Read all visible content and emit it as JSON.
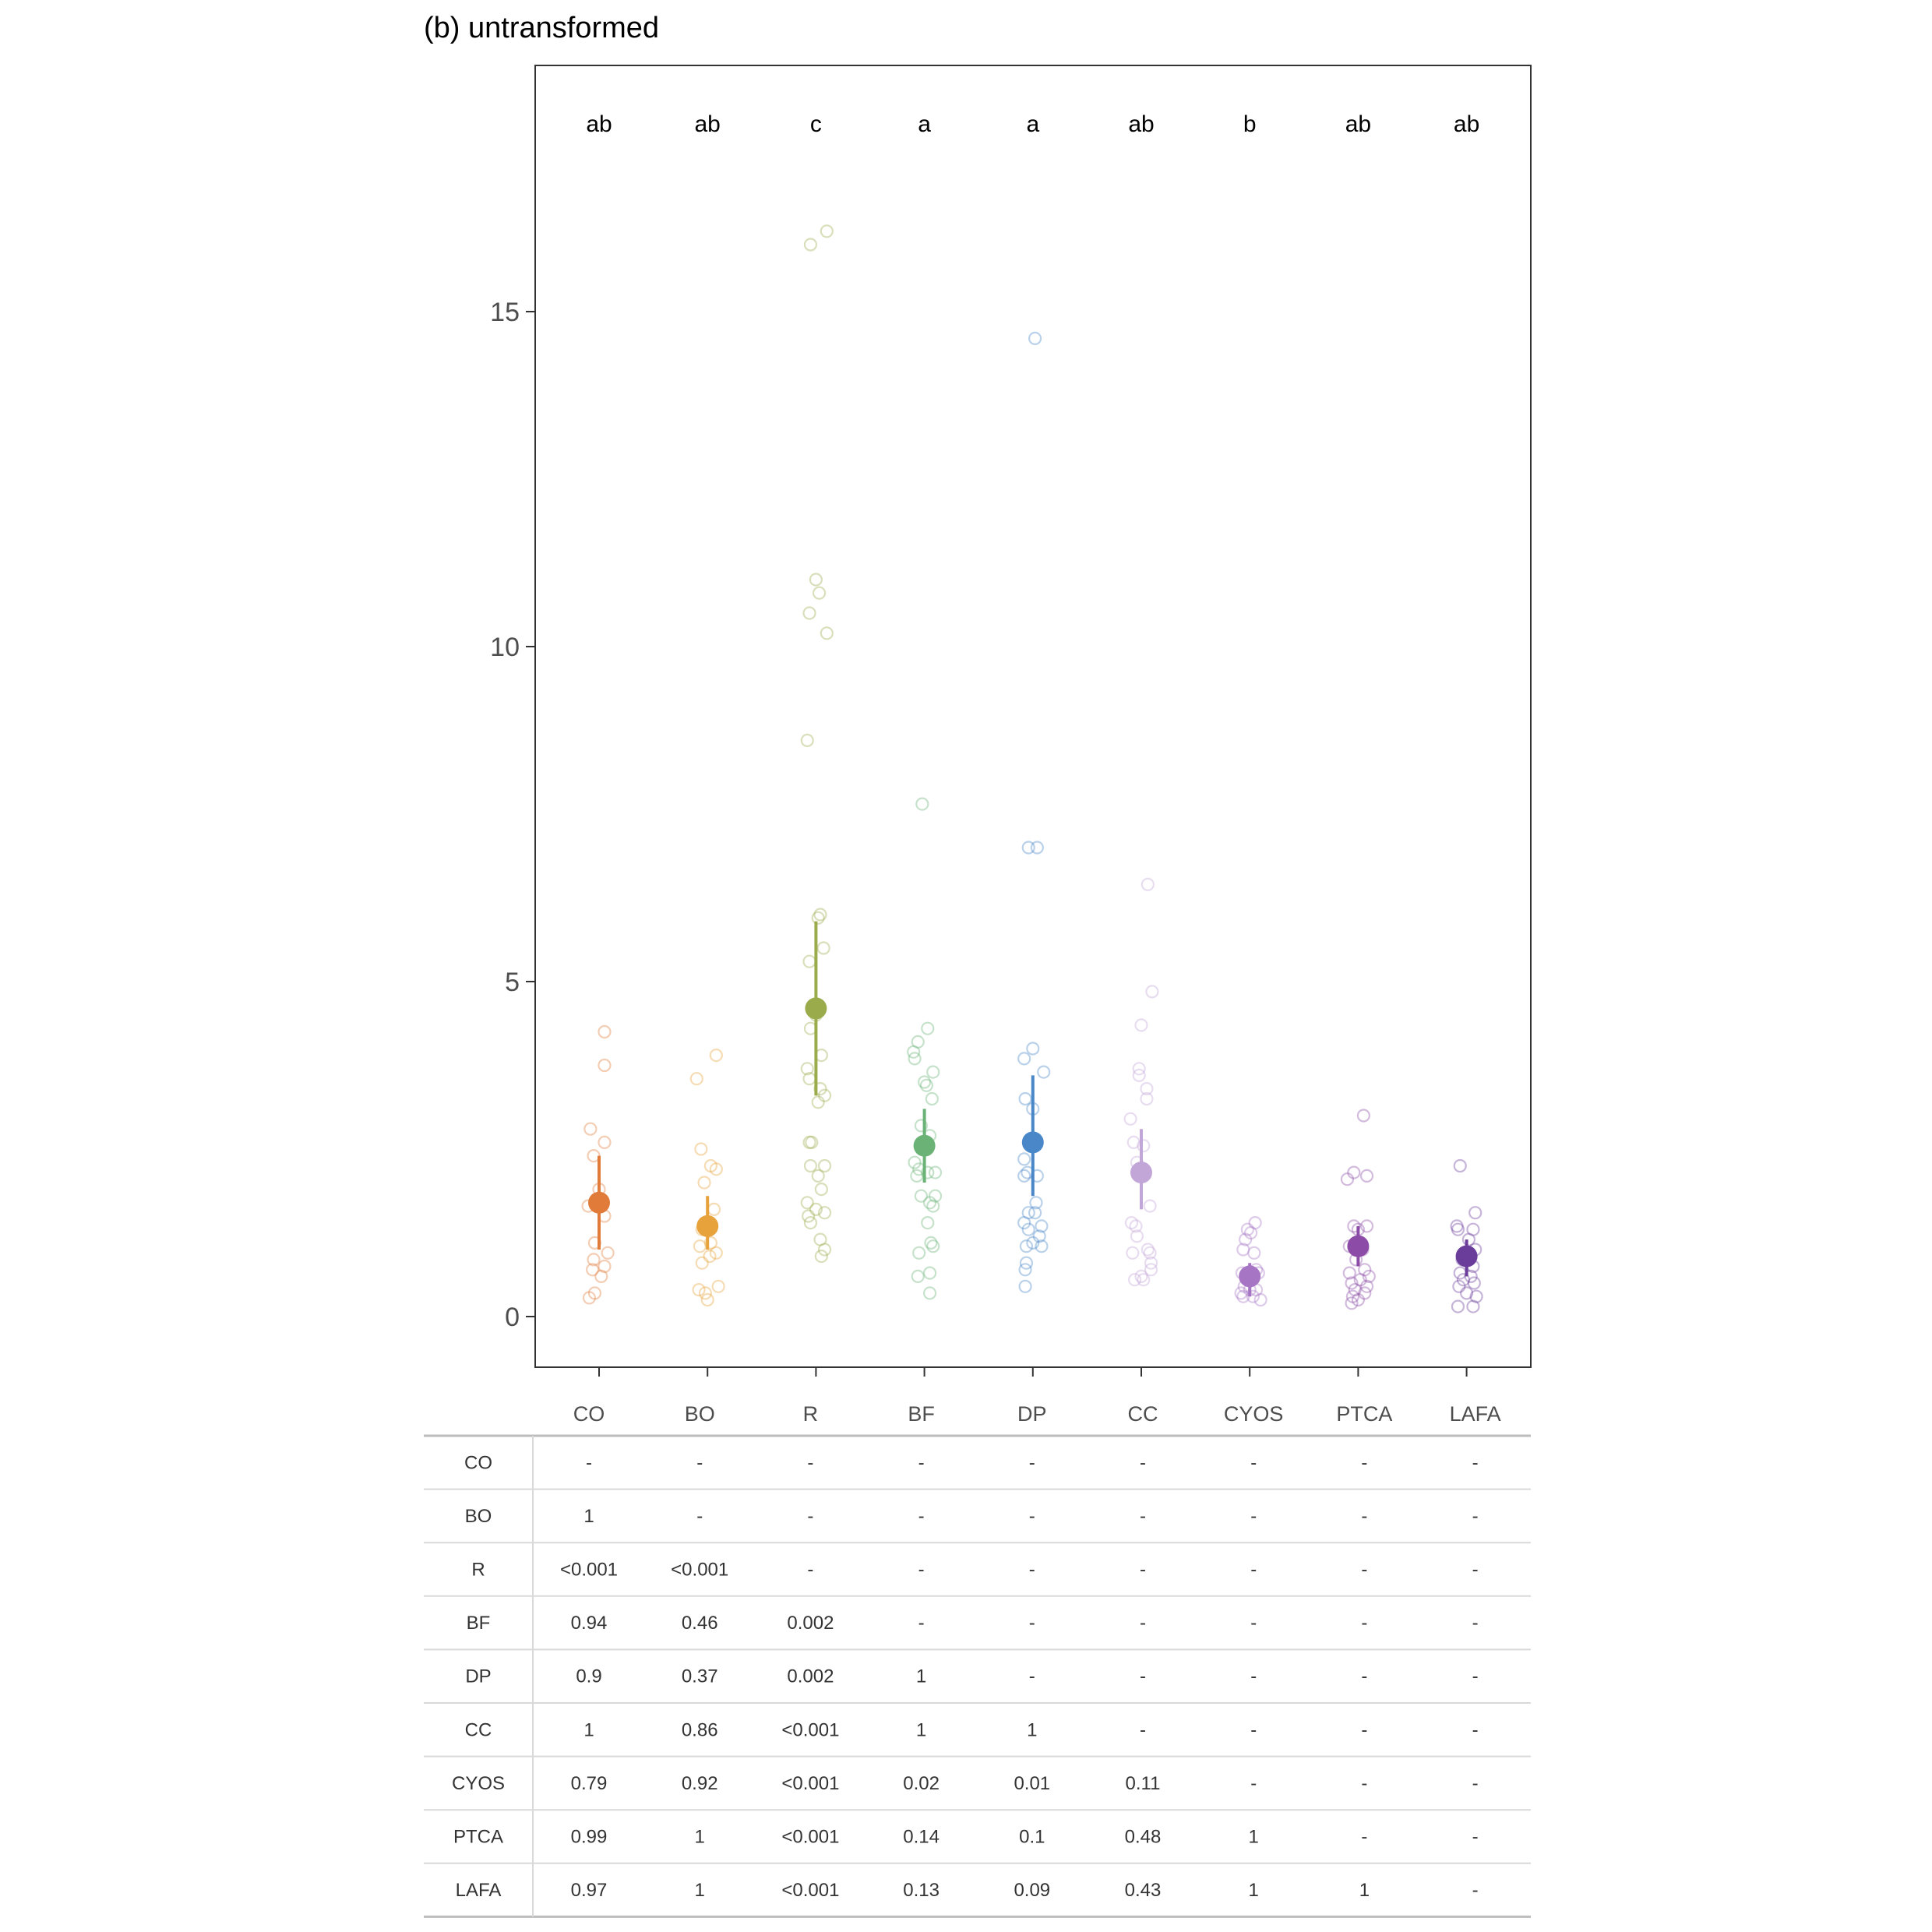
{
  "title": "(b) untransformed",
  "chart_data": {
    "type": "scatter",
    "description_style": "jittered raw points with mean and interval",
    "ylim": [
      -0.7,
      18.8
    ],
    "yticks": [
      0,
      5,
      10,
      15
    ],
    "grid": false,
    "categories": [
      "CO",
      "BO",
      "R",
      "BF",
      "DP",
      "CC",
      "CYOS",
      "PTCA",
      "LAFA"
    ],
    "colors": [
      "#e07b39",
      "#e8a23b",
      "#9aab4c",
      "#6ab276",
      "#4a87c8",
      "#c3a6d8",
      "#a676c4",
      "#8b4ba6",
      "#6a3d9a"
    ],
    "letters": [
      "ab",
      "ab",
      "c",
      "a",
      "a",
      "ab",
      "b",
      "ab",
      "ab"
    ],
    "means": [
      1.7,
      1.35,
      4.6,
      2.55,
      2.6,
      2.15,
      0.6,
      1.05,
      0.9
    ],
    "intervals": [
      [
        1.0,
        2.4
      ],
      [
        1.0,
        1.8
      ],
      [
        3.3,
        5.9
      ],
      [
        2.0,
        3.1
      ],
      [
        1.8,
        3.6
      ],
      [
        1.6,
        2.8
      ],
      [
        0.3,
        0.8
      ],
      [
        0.75,
        1.35
      ],
      [
        0.6,
        1.15
      ]
    ],
    "points": [
      [
        [
          -0.1,
          1.65
        ],
        [
          0.05,
          4.25
        ],
        [
          0.05,
          3.75
        ],
        [
          -0.08,
          2.8
        ],
        [
          0.05,
          2.6
        ],
        [
          -0.05,
          2.4
        ],
        [
          0.0,
          1.9
        ],
        [
          0.05,
          1.5
        ],
        [
          -0.04,
          1.1
        ],
        [
          0.08,
          0.95
        ],
        [
          -0.05,
          0.85
        ],
        [
          0.05,
          0.75
        ],
        [
          -0.06,
          0.7
        ],
        [
          0.02,
          0.6
        ],
        [
          -0.04,
          0.35
        ],
        [
          -0.09,
          0.28
        ]
      ],
      [
        [
          0.08,
          3.9
        ],
        [
          -0.1,
          3.55
        ],
        [
          -0.06,
          2.5
        ],
        [
          0.03,
          2.25
        ],
        [
          0.08,
          2.2
        ],
        [
          -0.03,
          2.0
        ],
        [
          0.06,
          1.6
        ],
        [
          -0.05,
          1.3
        ],
        [
          0.03,
          1.1
        ],
        [
          -0.07,
          1.05
        ],
        [
          0.08,
          0.95
        ],
        [
          0.02,
          0.9
        ],
        [
          -0.05,
          0.8
        ],
        [
          0.1,
          0.45
        ],
        [
          -0.08,
          0.4
        ],
        [
          -0.02,
          0.35
        ],
        [
          0.0,
          0.25
        ]
      ],
      [
        [
          0.1,
          16.2
        ],
        [
          -0.05,
          16.0
        ],
        [
          0.0,
          11.0
        ],
        [
          0.03,
          10.8
        ],
        [
          -0.06,
          10.5
        ],
        [
          0.1,
          10.2
        ],
        [
          -0.08,
          8.6
        ],
        [
          0.04,
          6.0
        ],
        [
          0.02,
          5.95
        ],
        [
          -0.06,
          5.3
        ],
        [
          0.07,
          5.5
        ],
        [
          0.0,
          4.5
        ],
        [
          -0.05,
          4.3
        ],
        [
          0.05,
          3.9
        ],
        [
          -0.08,
          3.7
        ],
        [
          0.04,
          3.4
        ],
        [
          -0.06,
          3.55
        ],
        [
          0.08,
          3.3
        ],
        [
          0.02,
          3.2
        ],
        [
          -0.06,
          2.6
        ],
        [
          -0.04,
          2.6
        ],
        [
          0.08,
          2.25
        ],
        [
          -0.05,
          2.25
        ],
        [
          0.02,
          2.1
        ],
        [
          0.05,
          1.9
        ],
        [
          -0.08,
          1.7
        ],
        [
          0.0,
          1.6
        ],
        [
          -0.07,
          1.5
        ],
        [
          0.08,
          1.55
        ],
        [
          -0.05,
          1.4
        ],
        [
          0.04,
          1.15
        ],
        [
          0.08,
          1.0
        ],
        [
          0.05,
          0.9
        ]
      ],
      [
        [
          -0.02,
          7.65
        ],
        [
          0.03,
          4.3
        ],
        [
          -0.06,
          4.1
        ],
        [
          -0.1,
          3.95
        ],
        [
          -0.09,
          3.85
        ],
        [
          0.08,
          3.65
        ],
        [
          0.0,
          3.5
        ],
        [
          0.02,
          3.45
        ],
        [
          0.07,
          3.25
        ],
        [
          -0.03,
          2.85
        ],
        [
          0.05,
          2.7
        ],
        [
          -0.09,
          2.3
        ],
        [
          -0.05,
          2.2
        ],
        [
          0.03,
          2.15
        ],
        [
          0.1,
          2.15
        ],
        [
          -0.07,
          2.1
        ],
        [
          0.1,
          1.8
        ],
        [
          -0.03,
          1.8
        ],
        [
          0.08,
          1.65
        ],
        [
          0.05,
          1.7
        ],
        [
          0.03,
          1.4
        ],
        [
          -0.05,
          0.95
        ],
        [
          0.08,
          1.05
        ],
        [
          0.06,
          1.1
        ],
        [
          -0.06,
          0.6
        ],
        [
          0.05,
          0.65
        ],
        [
          0.05,
          0.35
        ]
      ],
      [
        [
          0.02,
          14.6
        ],
        [
          -0.04,
          7.0
        ],
        [
          0.04,
          7.0
        ],
        [
          -0.08,
          3.85
        ],
        [
          0.0,
          4.0
        ],
        [
          0.1,
          3.65
        ],
        [
          -0.07,
          3.25
        ],
        [
          0.0,
          3.1
        ],
        [
          -0.08,
          2.35
        ],
        [
          0.04,
          2.1
        ],
        [
          -0.08,
          2.1
        ],
        [
          -0.05,
          2.15
        ],
        [
          0.03,
          1.7
        ],
        [
          -0.04,
          1.55
        ],
        [
          0.08,
          1.35
        ],
        [
          0.02,
          1.55
        ],
        [
          -0.08,
          1.4
        ],
        [
          -0.04,
          1.3
        ],
        [
          0.06,
          1.2
        ],
        [
          -0.06,
          1.05
        ],
        [
          0.0,
          1.1
        ],
        [
          0.08,
          1.05
        ],
        [
          -0.06,
          0.8
        ],
        [
          -0.07,
          0.7
        ],
        [
          -0.07,
          0.45
        ]
      ],
      [
        [
          0.06,
          6.45
        ],
        [
          0.1,
          4.85
        ],
        [
          0.0,
          4.35
        ],
        [
          -0.02,
          3.7
        ],
        [
          -0.02,
          3.6
        ],
        [
          0.05,
          3.4
        ],
        [
          0.05,
          3.25
        ],
        [
          -0.1,
          2.95
        ],
        [
          -0.07,
          2.6
        ],
        [
          0.02,
          2.55
        ],
        [
          -0.04,
          2.3
        ],
        [
          0.08,
          1.65
        ],
        [
          -0.09,
          1.4
        ],
        [
          -0.05,
          1.35
        ],
        [
          -0.04,
          1.2
        ],
        [
          0.06,
          1.0
        ],
        [
          0.08,
          0.95
        ],
        [
          -0.08,
          0.95
        ],
        [
          0.09,
          0.8
        ],
        [
          0.09,
          0.7
        ],
        [
          0.0,
          0.6
        ],
        [
          -0.06,
          0.55
        ],
        [
          0.02,
          0.55
        ]
      ],
      [
        [
          0.05,
          1.4
        ],
        [
          -0.02,
          1.3
        ],
        [
          0.01,
          1.25
        ],
        [
          -0.04,
          1.15
        ],
        [
          0.04,
          0.95
        ],
        [
          -0.06,
          1.0
        ],
        [
          0.06,
          0.7
        ],
        [
          -0.07,
          0.65
        ],
        [
          0.08,
          0.65
        ],
        [
          -0.02,
          0.55
        ],
        [
          -0.05,
          0.45
        ],
        [
          0.0,
          0.4
        ],
        [
          0.06,
          0.4
        ],
        [
          -0.08,
          0.35
        ],
        [
          0.03,
          0.3
        ],
        [
          -0.06,
          0.3
        ],
        [
          0.1,
          0.25
        ]
      ],
      [
        [
          0.05,
          3.0
        ],
        [
          -0.1,
          2.05
        ],
        [
          -0.04,
          2.15
        ],
        [
          0.08,
          2.1
        ],
        [
          -0.04,
          1.35
        ],
        [
          0.08,
          1.35
        ],
        [
          0.0,
          1.3
        ],
        [
          -0.08,
          1.05
        ],
        [
          0.04,
          1.0
        ],
        [
          -0.02,
          0.85
        ],
        [
          0.06,
          0.7
        ],
        [
          -0.08,
          0.65
        ],
        [
          0.1,
          0.6
        ],
        [
          0.02,
          0.55
        ],
        [
          -0.06,
          0.5
        ],
        [
          0.08,
          0.45
        ],
        [
          -0.03,
          0.4
        ],
        [
          0.06,
          0.35
        ],
        [
          -0.05,
          0.3
        ],
        [
          0.0,
          0.25
        ],
        [
          -0.06,
          0.2
        ]
      ],
      [
        [
          -0.06,
          2.25
        ],
        [
          0.08,
          1.55
        ],
        [
          -0.09,
          1.35
        ],
        [
          -0.08,
          1.3
        ],
        [
          0.06,
          1.3
        ],
        [
          0.02,
          1.15
        ],
        [
          0.08,
          1.0
        ],
        [
          -0.04,
          0.85
        ],
        [
          0.06,
          0.75
        ],
        [
          -0.06,
          0.65
        ],
        [
          0.04,
          0.6
        ],
        [
          -0.03,
          0.55
        ],
        [
          0.07,
          0.5
        ],
        [
          -0.07,
          0.45
        ],
        [
          0.0,
          0.35
        ],
        [
          0.09,
          0.3
        ],
        [
          -0.08,
          0.15
        ],
        [
          0.06,
          0.15
        ]
      ]
    ]
  },
  "table": {
    "col_headers": [
      "CO",
      "BO",
      "R",
      "BF",
      "DP",
      "CC",
      "CYOS",
      "PTCA",
      "LAFA"
    ],
    "rows": [
      {
        "label": "CO",
        "cells": [
          "-",
          "-",
          "-",
          "-",
          "-",
          "-",
          "-",
          "-",
          "-"
        ]
      },
      {
        "label": "BO",
        "cells": [
          "1",
          "-",
          "-",
          "-",
          "-",
          "-",
          "-",
          "-",
          "-"
        ]
      },
      {
        "label": "R",
        "cells": [
          "<0.001",
          "<0.001",
          "-",
          "-",
          "-",
          "-",
          "-",
          "-",
          "-"
        ]
      },
      {
        "label": "BF",
        "cells": [
          "0.94",
          "0.46",
          "0.002",
          "-",
          "-",
          "-",
          "-",
          "-",
          "-"
        ]
      },
      {
        "label": "DP",
        "cells": [
          "0.9",
          "0.37",
          "0.002",
          "1",
          "-",
          "-",
          "-",
          "-",
          "-"
        ]
      },
      {
        "label": "CC",
        "cells": [
          "1",
          "0.86",
          "<0.001",
          "1",
          "1",
          "-",
          "-",
          "-",
          "-"
        ]
      },
      {
        "label": "CYOS",
        "cells": [
          "0.79",
          "0.92",
          "<0.001",
          "0.02",
          "0.01",
          "0.11",
          "-",
          "-",
          "-"
        ]
      },
      {
        "label": "PTCA",
        "cells": [
          "0.99",
          "1",
          "<0.001",
          "0.14",
          "0.1",
          "0.48",
          "1",
          "-",
          "-"
        ]
      },
      {
        "label": "LAFA",
        "cells": [
          "0.97",
          "1",
          "<0.001",
          "0.13",
          "0.09",
          "0.43",
          "1",
          "1",
          "-"
        ]
      }
    ]
  }
}
